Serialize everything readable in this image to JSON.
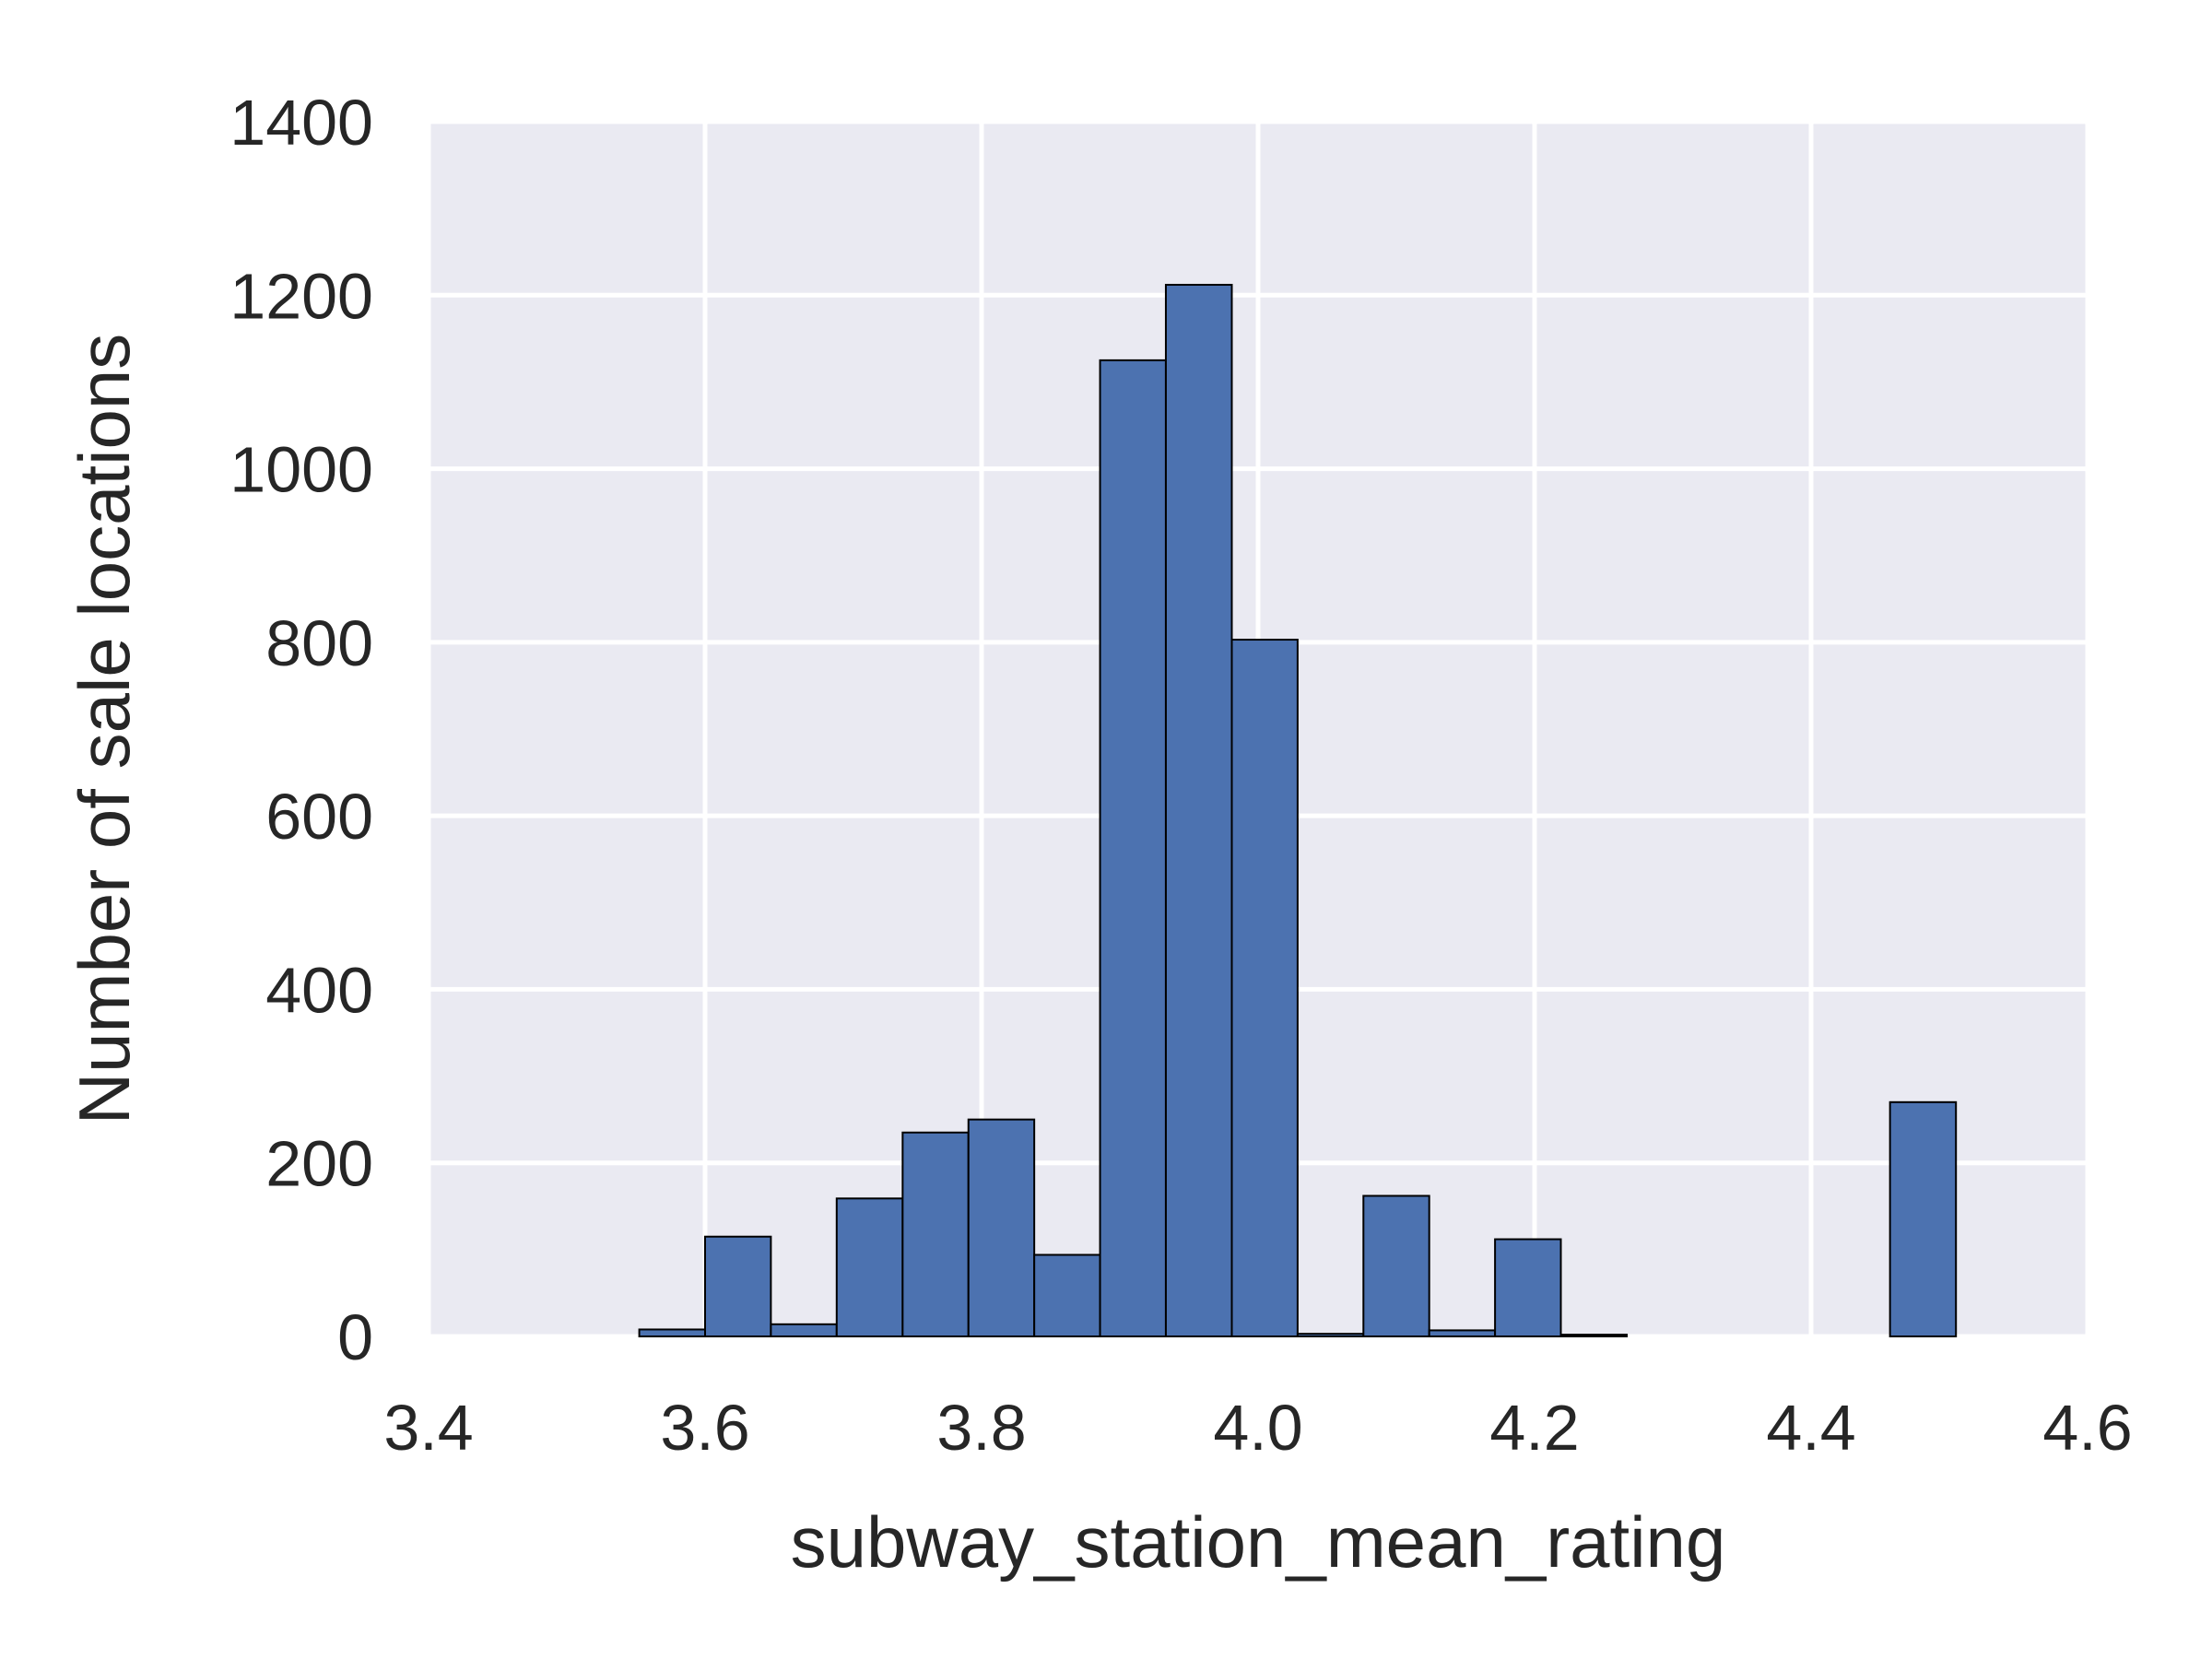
{
  "chart_data": {
    "type": "bar",
    "xlabel": "subway_station_mean_rating",
    "ylabel": "Number of sale locations",
    "xlim": [
      3.4,
      4.6
    ],
    "ylim": [
      0,
      1400
    ],
    "x_ticks": [
      "3.4",
      "3.6",
      "3.8",
      "4.0",
      "4.2",
      "4.4",
      "4.6"
    ],
    "y_ticks": [
      "0",
      "200",
      "400",
      "600",
      "800",
      "1000",
      "1200",
      "1400"
    ],
    "grid": true,
    "bins": [
      {
        "start": 3.5524,
        "end": 3.6,
        "value": 8
      },
      {
        "start": 3.6,
        "end": 3.6476,
        "value": 115
      },
      {
        "start": 3.6476,
        "end": 3.6952,
        "value": 14
      },
      {
        "start": 3.6952,
        "end": 3.7429,
        "value": 159
      },
      {
        "start": 3.7429,
        "end": 3.7905,
        "value": 235
      },
      {
        "start": 3.7905,
        "end": 3.8381,
        "value": 250
      },
      {
        "start": 3.8381,
        "end": 3.8857,
        "value": 94
      },
      {
        "start": 3.8857,
        "end": 3.9333,
        "value": 1125
      },
      {
        "start": 3.9333,
        "end": 3.981,
        "value": 1212
      },
      {
        "start": 3.981,
        "end": 4.0286,
        "value": 803
      },
      {
        "start": 4.0286,
        "end": 4.0762,
        "value": 3
      },
      {
        "start": 4.0762,
        "end": 4.1238,
        "value": 162
      },
      {
        "start": 4.1238,
        "end": 4.1714,
        "value": 7
      },
      {
        "start": 4.1714,
        "end": 4.219,
        "value": 112
      },
      {
        "start": 4.219,
        "end": 4.2667,
        "value": 2
      },
      {
        "start": 4.2667,
        "end": 4.3143,
        "value": 0
      },
      {
        "start": 4.3143,
        "end": 4.3619,
        "value": 0
      },
      {
        "start": 4.3619,
        "end": 4.4095,
        "value": 0
      },
      {
        "start": 4.4095,
        "end": 4.4571,
        "value": 0
      },
      {
        "start": 4.4571,
        "end": 4.5048,
        "value": 270
      }
    ],
    "colors": {
      "bar": "#4c72b0",
      "bar_edge": "#000000",
      "plot_bg": "#eaeaf2",
      "grid": "#ffffff"
    }
  }
}
